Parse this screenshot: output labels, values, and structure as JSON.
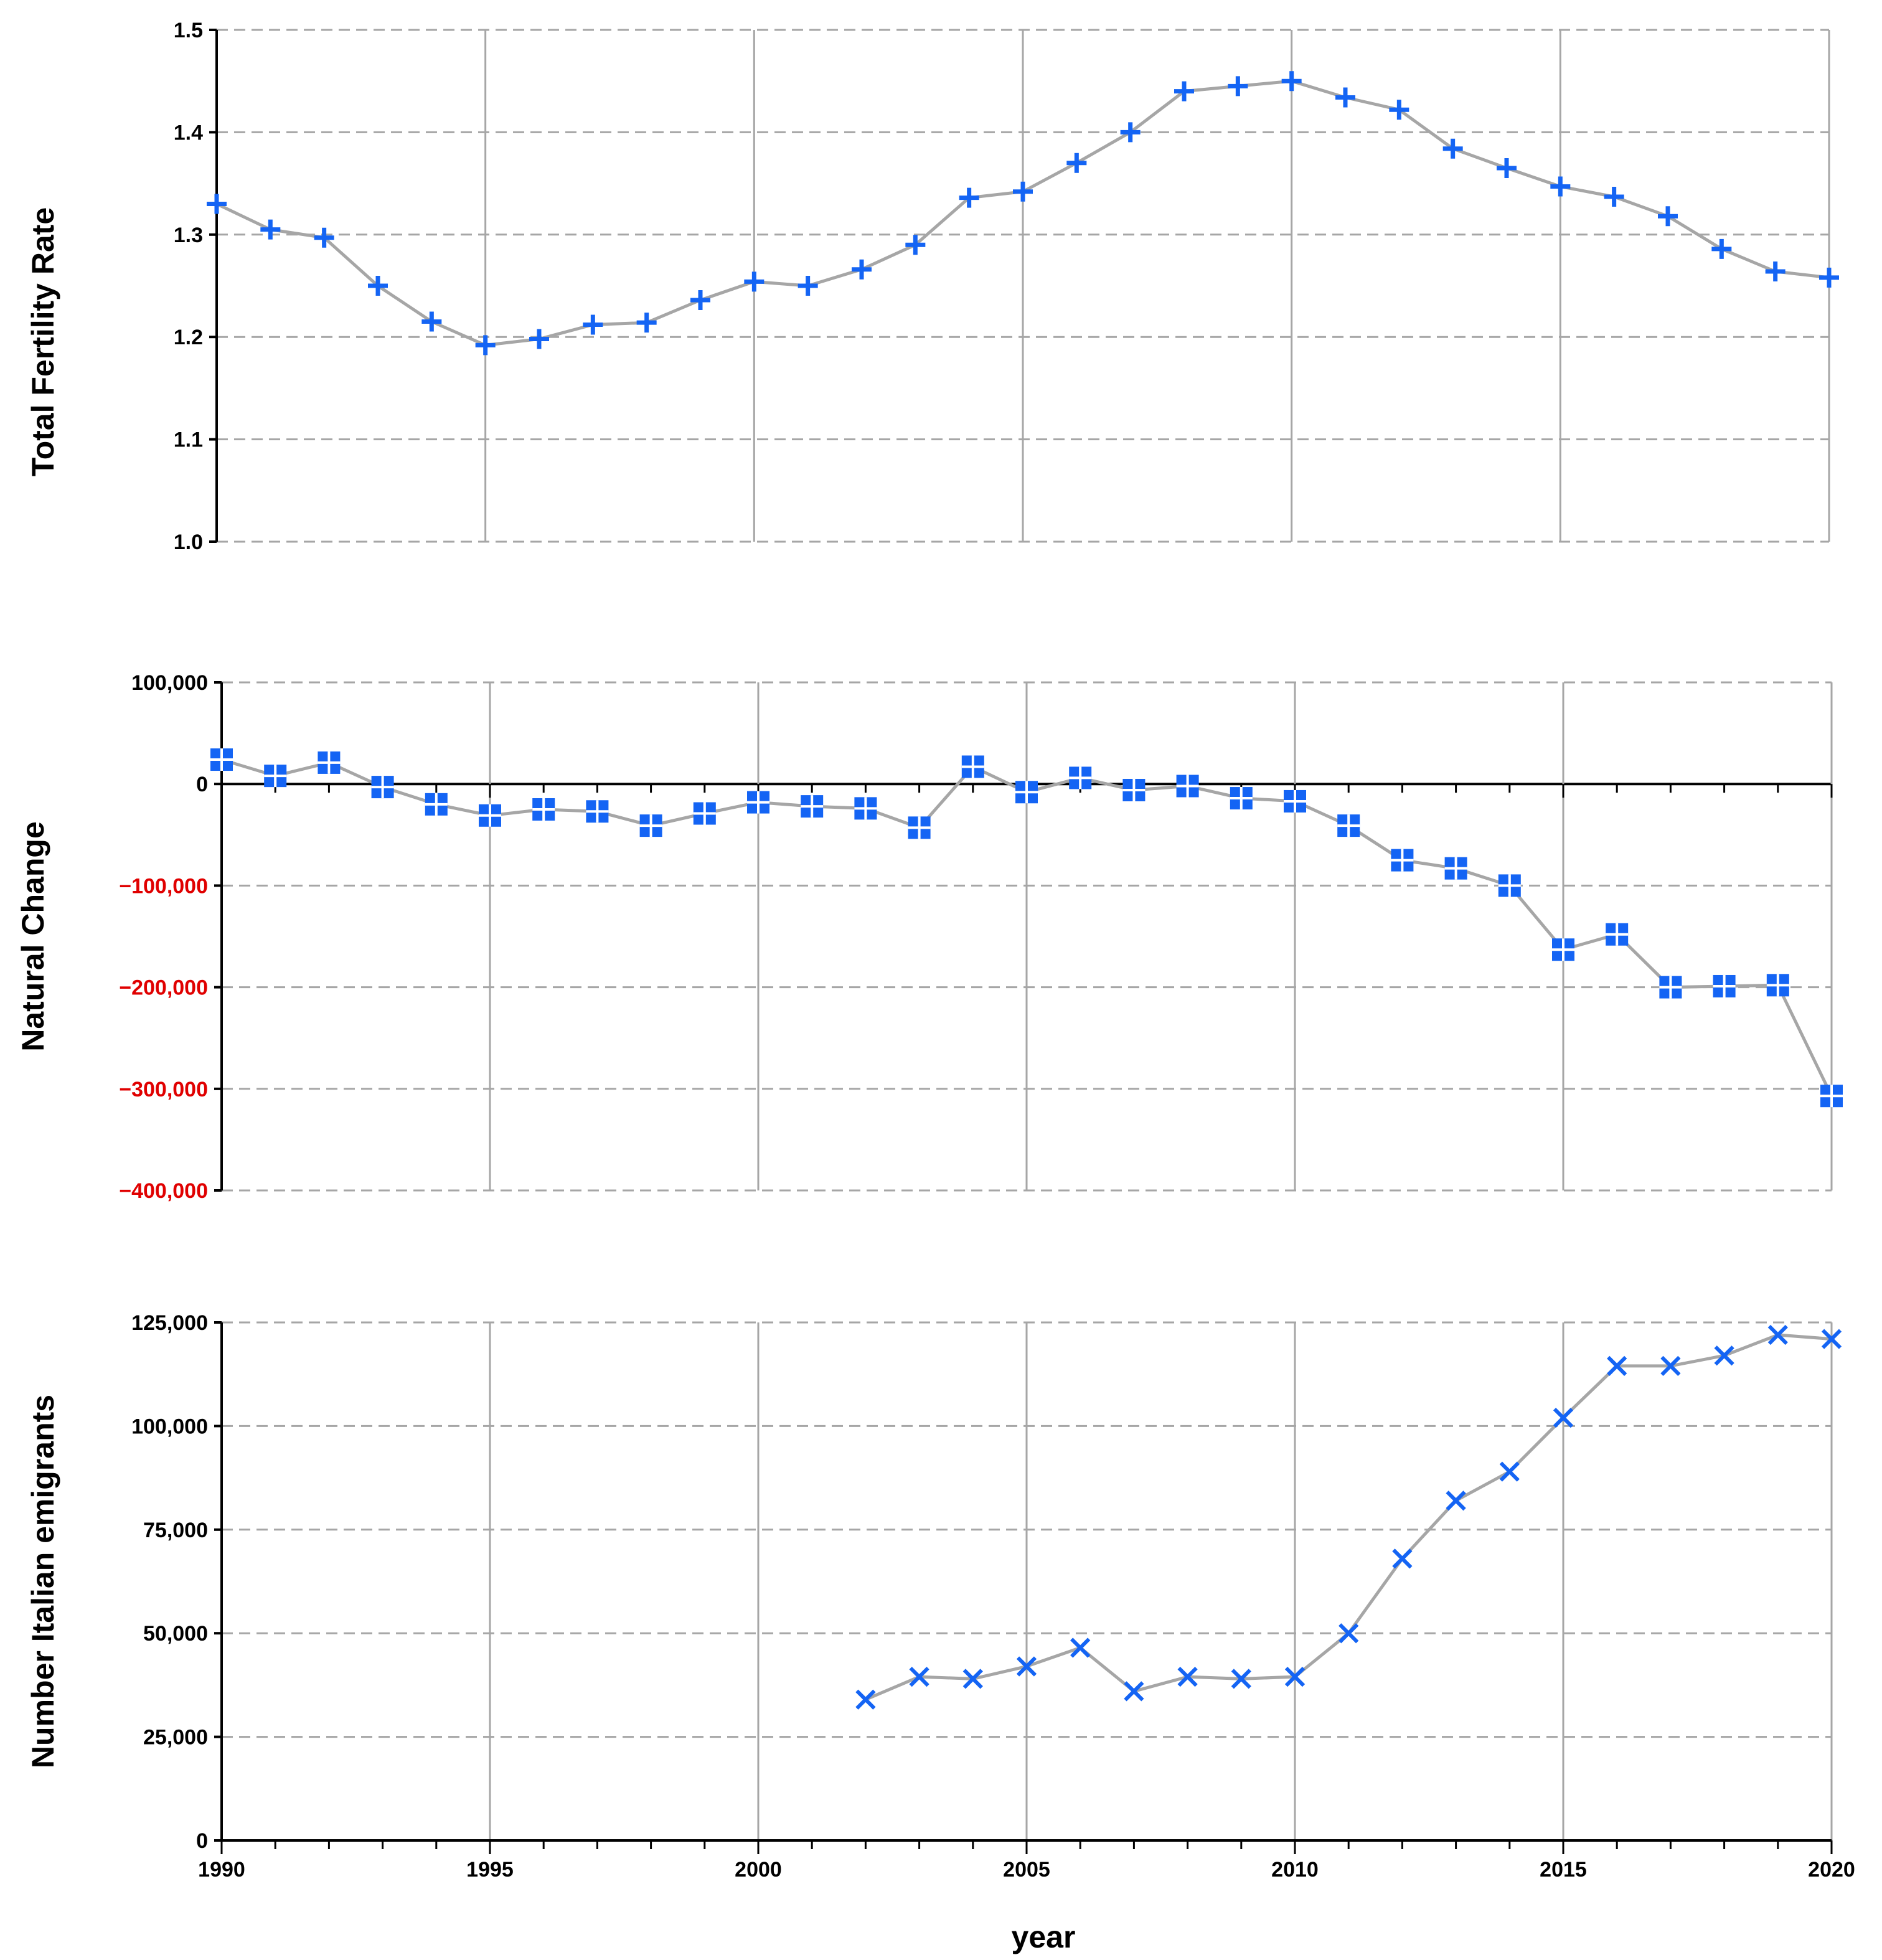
{
  "colors": {
    "marker": "#1464F4",
    "line": "#A6A6A6",
    "grid": "#A6A6A6",
    "axis": "#000000",
    "negative_label": "#E00000"
  },
  "chart_data": [
    {
      "type": "line",
      "marker": "plus",
      "title": "",
      "ylabel": "Total Fertility Rate",
      "xlabel": "",
      "xlim": [
        1990,
        2020
      ],
      "ylim": [
        1.0,
        1.5
      ],
      "y_ticks": [
        1.0,
        1.1,
        1.2,
        1.3,
        1.4,
        1.5
      ],
      "y_tick_labels": [
        "1.0",
        "1.1",
        "1.2",
        "1.3",
        "1.4",
        "1.5"
      ],
      "x_ticks": [
        1990,
        1995,
        2000,
        2005,
        2010,
        2015,
        2020
      ],
      "x_tick_labels": [],
      "grid": true,
      "x": [
        1990,
        1991,
        1992,
        1993,
        1994,
        1995,
        1996,
        1997,
        1998,
        1999,
        2000,
        2001,
        2002,
        2003,
        2004,
        2005,
        2006,
        2007,
        2008,
        2009,
        2010,
        2011,
        2012,
        2013,
        2014,
        2015,
        2016,
        2017,
        2018,
        2019,
        2020
      ],
      "y": [
        1.33,
        1.305,
        1.297,
        1.25,
        1.215,
        1.192,
        1.198,
        1.212,
        1.214,
        1.236,
        1.254,
        1.25,
        1.266,
        1.29,
        1.336,
        1.342,
        1.37,
        1.4,
        1.44,
        1.445,
        1.45,
        1.434,
        1.422,
        1.384,
        1.365,
        1.347,
        1.337,
        1.318,
        1.286,
        1.264,
        1.258
      ]
    },
    {
      "type": "line",
      "marker": "square",
      "title": "",
      "ylabel": "Natural Change",
      "xlabel": "",
      "xlim": [
        1990,
        2020
      ],
      "ylim": [
        -400000,
        100000
      ],
      "y_ticks": [
        -400000,
        -300000,
        -200000,
        -100000,
        0,
        100000
      ],
      "y_tick_labels": [
        "−400,000",
        "−300,000",
        "−200,000",
        "−100,000",
        "0",
        "100,000"
      ],
      "x_ticks": [
        1990,
        1995,
        2000,
        2005,
        2010,
        2015,
        2020
      ],
      "x_tick_labels": [],
      "grid": true,
      "x": [
        1990,
        1991,
        1992,
        1993,
        1994,
        1995,
        1996,
        1997,
        1998,
        1999,
        2000,
        2001,
        2002,
        2003,
        2004,
        2005,
        2006,
        2007,
        2008,
        2009,
        2010,
        2011,
        2012,
        2013,
        2014,
        2015,
        2016,
        2017,
        2018,
        2019,
        2020
      ],
      "y": [
        24000,
        8000,
        21000,
        -3000,
        -20000,
        -31000,
        -25000,
        -27000,
        -41000,
        -29000,
        -18000,
        -22000,
        -24000,
        -43000,
        17000,
        -8000,
        6000,
        -6000,
        -2000,
        -14000,
        -17000,
        -41000,
        -75000,
        -83000,
        -100000,
        -163000,
        -148000,
        -200000,
        -199000,
        -198000,
        -307000
      ]
    },
    {
      "type": "line",
      "marker": "x",
      "title": "",
      "ylabel": "Number Italian emigrants",
      "xlabel": "year",
      "xlim": [
        1990,
        2020
      ],
      "ylim": [
        0,
        125000
      ],
      "y_ticks": [
        0,
        25000,
        50000,
        75000,
        100000,
        125000
      ],
      "y_tick_labels": [
        "0",
        "25,000",
        "50,000",
        "75,000",
        "100,000",
        "125,000"
      ],
      "x_ticks": [
        1990,
        1995,
        2000,
        2005,
        2010,
        2015,
        2020
      ],
      "x_tick_labels": [
        "1990",
        "1995",
        "2000",
        "2005",
        "2010",
        "2015",
        "2020"
      ],
      "grid": true,
      "x": [
        2002,
        2003,
        2004,
        2005,
        2006,
        2007,
        2008,
        2009,
        2010,
        2011,
        2012,
        2013,
        2014,
        2015,
        2016,
        2017,
        2018,
        2019,
        2020
      ],
      "y": [
        34000,
        39500,
        39000,
        42000,
        46500,
        36000,
        39500,
        39000,
        39500,
        50000,
        68000,
        82000,
        89000,
        102000,
        114500,
        114500,
        117000,
        122000,
        121000
      ]
    }
  ]
}
